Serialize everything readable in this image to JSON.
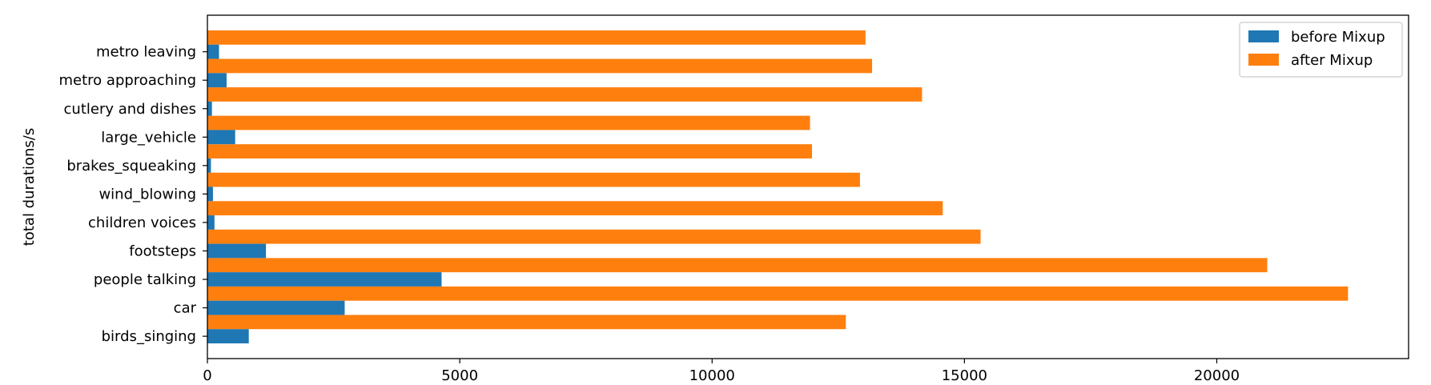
{
  "chart_data": {
    "type": "bar",
    "orientation": "horizontal",
    "categories": [
      "birds_singing",
      "car",
      "people talking",
      "footsteps",
      "children voices",
      "wind_blowing",
      "brakes_squeaking",
      "large_vehicle",
      "cutlery and dishes",
      "metro approaching",
      "metro leaving"
    ],
    "series": [
      {
        "name": "before Mixup",
        "color": "#1f77b4",
        "values": [
          820,
          2720,
          4640,
          1160,
          140,
          110,
          70,
          550,
          90,
          380,
          230
        ]
      },
      {
        "name": "after Mixup",
        "color": "#ff7f0e",
        "values": [
          12650,
          22600,
          21000,
          15320,
          14570,
          12930,
          11980,
          11940,
          14160,
          13170,
          13040
        ]
      }
    ],
    "xlim": [
      0,
      23800
    ],
    "xticks": [
      0,
      5000,
      10000,
      15000,
      20000
    ],
    "xlabel": "",
    "ylabel": "total durations/s",
    "title": "",
    "legend": "top-right",
    "grid": false
  }
}
